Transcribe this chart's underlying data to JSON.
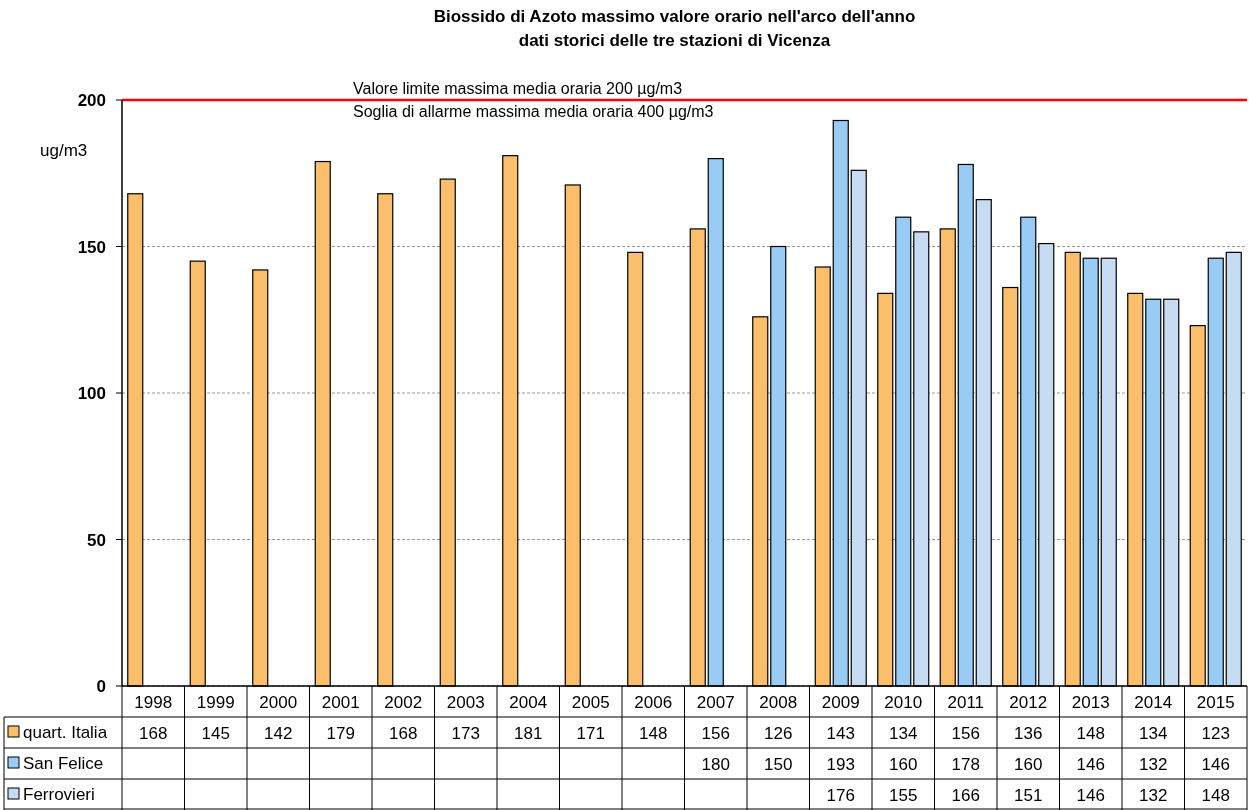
{
  "chart_data": {
    "type": "bar",
    "title": "Biossido di Azoto massimo valore orario nell'arco dell'anno\ndati storici delle tre stazioni di Vicenza",
    "categories": [
      "1998",
      "1999",
      "2000",
      "2001",
      "2002",
      "2003",
      "2004",
      "2005",
      "2006",
      "2007",
      "2008",
      "2009",
      "2010",
      "2011",
      "2012",
      "2013",
      "2014",
      "2015"
    ],
    "series": [
      {
        "name": "quart. Italia",
        "color": "#fbbf6b",
        "values": [
          168,
          145,
          142,
          179,
          168,
          173,
          181,
          171,
          148,
          156,
          126,
          143,
          134,
          156,
          136,
          148,
          134,
          123
        ]
      },
      {
        "name": "San Felice",
        "color": "#99ccf5",
        "values": [
          null,
          null,
          null,
          null,
          null,
          null,
          null,
          null,
          null,
          180,
          150,
          193,
          160,
          178,
          160,
          146,
          132,
          146
        ]
      },
      {
        "name": "Ferrovieri",
        "color": "#c5dcf2",
        "values": [
          null,
          null,
          null,
          null,
          null,
          null,
          null,
          null,
          null,
          null,
          null,
          176,
          155,
          166,
          151,
          146,
          132,
          148
        ]
      }
    ],
    "ylabel": "ug/m3",
    "ylim": [
      0,
      200
    ],
    "yticks": [
      0,
      50,
      100,
      150,
      200
    ],
    "grid": "y",
    "legend": "bottom",
    "data_labels": true,
    "ref_lines": [
      {
        "axis": "y",
        "value": 200,
        "label": "Valore limite massima media oraria 200 µg/m3",
        "color": "#ff0000"
      }
    ],
    "annotations": [
      "Soglia di allarme massima media oraria 400 µg/m3"
    ]
  }
}
